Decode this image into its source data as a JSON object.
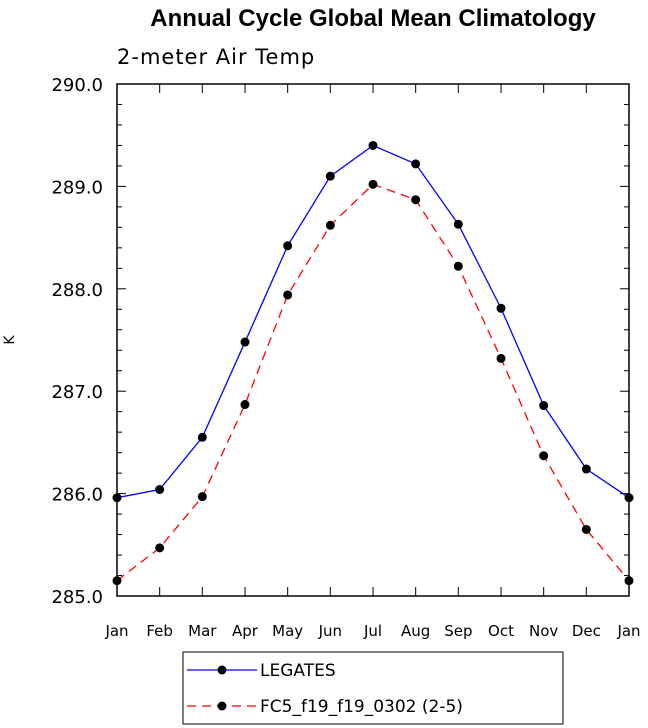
{
  "chart_data": {
    "type": "line",
    "title": "Annual Cycle Global Mean Climatology",
    "subtitle": "2-meter Air Temp",
    "xlabel": "",
    "ylabel": "K",
    "ylim": [
      285.0,
      290.0
    ],
    "yticks": [
      "285.0",
      "286.0",
      "287.0",
      "288.0",
      "289.0",
      "290.0"
    ],
    "ytick_values": [
      285.0,
      286.0,
      287.0,
      288.0,
      289.0,
      290.0
    ],
    "categories": [
      "Jan",
      "Feb",
      "Mar",
      "Apr",
      "May",
      "Jun",
      "Jul",
      "Aug",
      "Sep",
      "Oct",
      "Nov",
      "Dec",
      "Jan"
    ],
    "series": [
      {
        "name": "LEGATES",
        "color": "#0000ff",
        "dash": "solid",
        "values": [
          285.96,
          286.04,
          286.55,
          287.48,
          288.42,
          289.1,
          289.4,
          289.22,
          288.63,
          287.81,
          286.86,
          286.24,
          285.96
        ]
      },
      {
        "name": "FC5_f19_f19_0302 (2-5)",
        "color": "#ff0000",
        "dash": "dashed",
        "values": [
          285.15,
          285.47,
          285.97,
          286.87,
          287.94,
          288.62,
          289.02,
          288.87,
          288.22,
          287.32,
          286.37,
          285.65,
          285.15
        ]
      }
    ],
    "legend_position": "bottom-center"
  }
}
